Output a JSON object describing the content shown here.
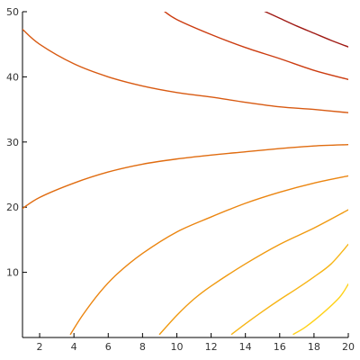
{
  "chart_data": {
    "type": "contour",
    "title": "",
    "xlabel": "",
    "ylabel": "",
    "xlim": [
      1,
      20
    ],
    "ylim": [
      0,
      50
    ],
    "x_ticks": [
      2,
      4,
      6,
      8,
      10,
      12,
      14,
      16,
      18,
      20
    ],
    "y_ticks": [
      10,
      20,
      30,
      40,
      50
    ],
    "grid": false,
    "legend": "none",
    "series": [
      {
        "color": "#ffd21a",
        "points": [
          [
            16.8,
            0.5
          ],
          [
            17.5,
            1.6
          ],
          [
            18.5,
            3.7
          ],
          [
            19.5,
            6.2
          ],
          [
            20,
            8.2
          ]
        ]
      },
      {
        "color": "#f7b516",
        "points": [
          [
            13.2,
            0.5
          ],
          [
            14,
            2.1
          ],
          [
            15,
            4.0
          ],
          [
            16,
            5.8
          ],
          [
            17,
            7.5
          ],
          [
            18,
            9.3
          ],
          [
            19,
            11.3
          ],
          [
            20,
            14.3
          ]
        ]
      },
      {
        "color": "#f09a10",
        "points": [
          [
            9.0,
            0.5
          ],
          [
            10,
            3.4
          ],
          [
            11,
            5.9
          ],
          [
            12,
            7.9
          ],
          [
            14,
            11.3
          ],
          [
            16,
            14.3
          ],
          [
            18,
            16.8
          ],
          [
            20,
            19.6
          ]
        ]
      },
      {
        "color": "#eb8510",
        "points": [
          [
            3.8,
            0.5
          ],
          [
            4.5,
            3.4
          ],
          [
            5.5,
            6.9
          ],
          [
            6.5,
            9.7
          ],
          [
            8,
            12.9
          ],
          [
            10,
            16.2
          ],
          [
            12,
            18.5
          ],
          [
            14,
            20.6
          ],
          [
            16,
            22.3
          ],
          [
            18,
            23.7
          ],
          [
            20,
            24.8
          ]
        ]
      },
      {
        "color": "#e06c10",
        "points": [
          [
            1,
            19.8
          ],
          [
            2,
            21.5
          ],
          [
            4,
            23.7
          ],
          [
            6,
            25.4
          ],
          [
            8,
            26.6
          ],
          [
            10,
            27.4
          ],
          [
            12,
            28.0
          ],
          [
            14,
            28.5
          ],
          [
            16,
            29.0
          ],
          [
            18,
            29.4
          ],
          [
            20,
            29.6
          ]
        ]
      },
      {
        "color": "#d85a12",
        "points": [
          [
            1,
            47.3
          ],
          [
            2,
            45.0
          ],
          [
            4,
            42.0
          ],
          [
            6,
            40.0
          ],
          [
            8,
            38.6
          ],
          [
            10,
            37.6
          ],
          [
            12,
            36.9
          ],
          [
            14,
            36.1
          ],
          [
            16,
            35.4
          ],
          [
            18,
            35.0
          ],
          [
            20,
            34.5
          ]
        ]
      },
      {
        "color": "#cc3c10",
        "points": [
          [
            9.2,
            50.2
          ],
          [
            10,
            48.8
          ],
          [
            12,
            46.5
          ],
          [
            14,
            44.5
          ],
          [
            16,
            42.8
          ],
          [
            18,
            41.0
          ],
          [
            20,
            39.6
          ]
        ]
      },
      {
        "color": "#a01a14",
        "points": [
          [
            15.0,
            50.2
          ],
          [
            16,
            49.0
          ],
          [
            17,
            47.8
          ],
          [
            18,
            46.7
          ],
          [
            19,
            45.6
          ],
          [
            20,
            44.6
          ]
        ]
      }
    ]
  }
}
